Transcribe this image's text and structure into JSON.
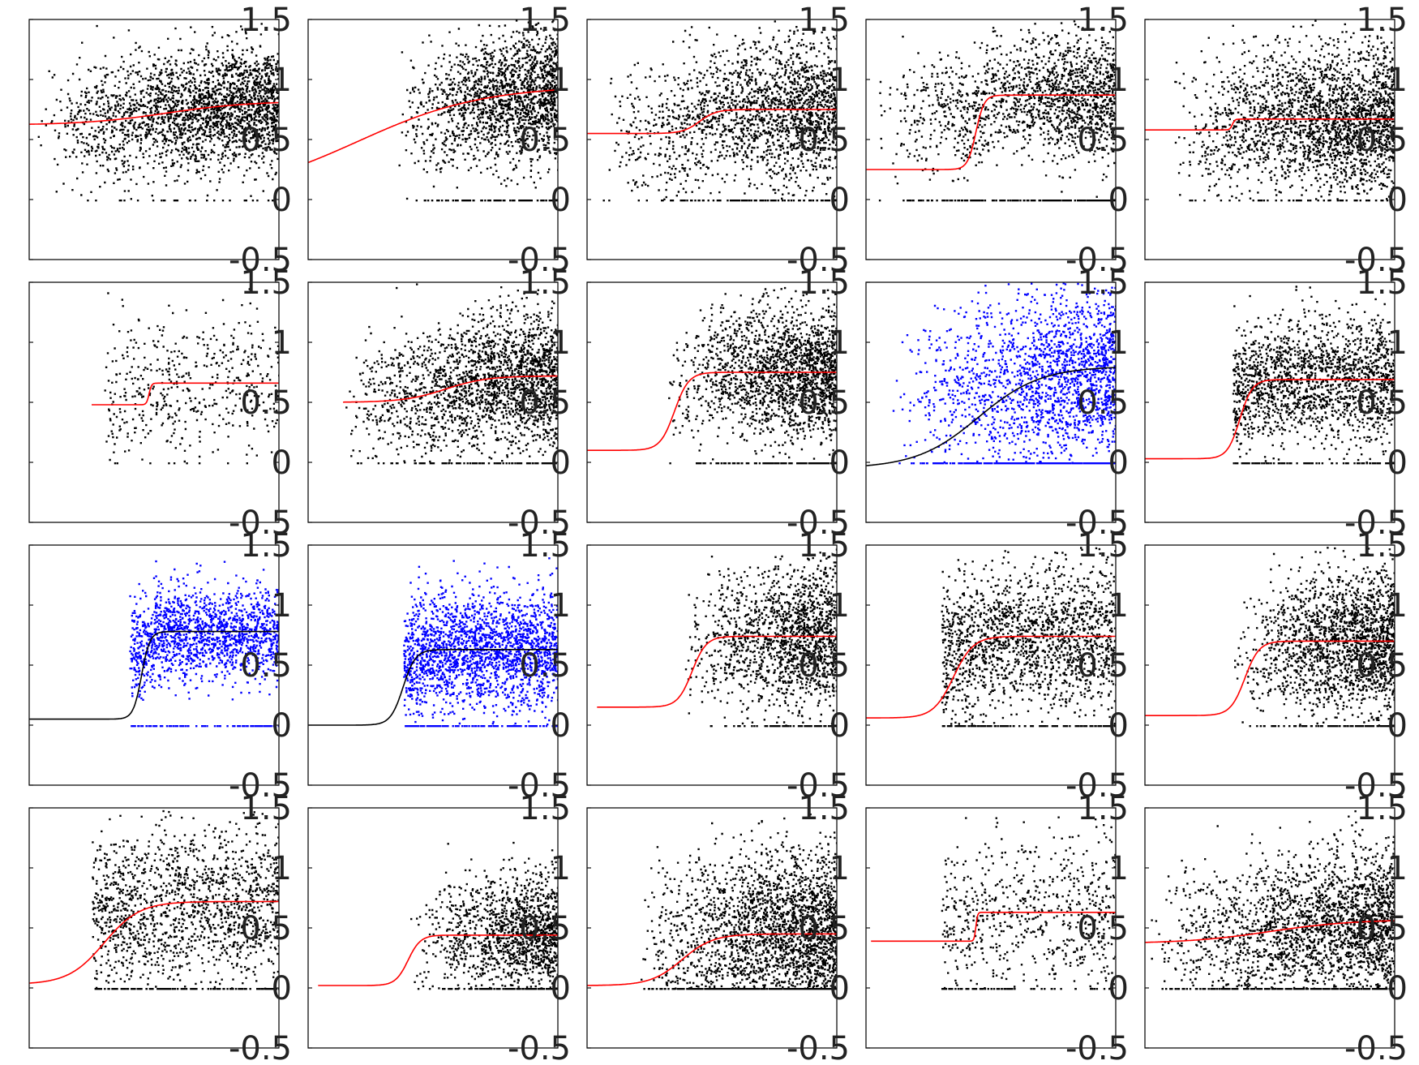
{
  "colors": {
    "points_default": "#000000",
    "points_highlight": "#0000ff",
    "fit_default": "#ff0000",
    "fit_highlight": "#000000",
    "axes": "#111111",
    "tick_text": "#222222"
  },
  "chart_data": {
    "type": "scatter",
    "layout": "grid 4 rows x 5 columns of small scatter panels with fitted sigmoid/step curves",
    "ylim": [
      -0.5,
      1.5
    ],
    "yticks": [
      "-0.5",
      "0",
      "0.5",
      "1",
      "1.5"
    ],
    "xlim": [
      0,
      1
    ],
    "grid": false,
    "legend": "none",
    "panels": [
      {
        "fit": {
          "lo": 0.62,
          "hi": 0.82,
          "mid": 0.55,
          "k": 6
        },
        "cloud": {
          "x0": 0.02,
          "y0": 0.78,
          "sd": 0.25,
          "zero_frac": 0.01,
          "n": 2400,
          "dens": "rising"
        },
        "highlight": false
      },
      {
        "fit": {
          "lo": 0.02,
          "hi": 0.95,
          "mid": 0.2,
          "k": 4
        },
        "cloud": {
          "x0": 0.35,
          "y0": 0.68,
          "sd": 0.28,
          "zero_frac": 0.05,
          "n": 1800,
          "dens": "rising"
        },
        "highlight": false
      },
      {
        "fit": {
          "lo": 0.55,
          "hi": 0.75,
          "mid": 0.45,
          "k": 30
        },
        "cloud": {
          "x0": 0.05,
          "y0": 0.72,
          "sd": 0.3,
          "zero_frac": 0.04,
          "n": 2000,
          "dens": "rising"
        },
        "highlight": false
      },
      {
        "fit": {
          "lo": 0.25,
          "hi": 0.87,
          "mid": 0.44,
          "k": 60
        },
        "cloud": {
          "x0": 0.02,
          "y0": 0.85,
          "sd": 0.25,
          "zero_frac": 0.1,
          "n": 1800,
          "dens": "rising"
        },
        "highlight": false
      },
      {
        "fit": {
          "lo": 0.58,
          "hi": 0.67,
          "mid": 0.35,
          "k": 200
        },
        "cloud": {
          "x0": 0.1,
          "y0": 0.65,
          "sd": 0.3,
          "zero_frac": 0.01,
          "n": 2400,
          "dens": "rising"
        },
        "highlight": false
      },
      {
        "fit": {
          "lo": 0.48,
          "hi": 0.66,
          "mid": 0.48,
          "k": 200,
          "x_start": 0.25
        },
        "cloud": {
          "x0": 0.3,
          "y0": 0.7,
          "sd": 0.3,
          "zero_frac": 0.01,
          "n": 500,
          "dens": "flat"
        },
        "highlight": false
      },
      {
        "fit": {
          "lo": 0.5,
          "hi": 0.72,
          "mid": 0.55,
          "k": 12,
          "x_start": 0.14
        },
        "cloud": {
          "x0": 0.14,
          "y0": 0.65,
          "sd": 0.28,
          "zero_frac": 0.03,
          "n": 2200,
          "dens": "rising"
        },
        "highlight": false
      },
      {
        "fit": {
          "lo": 0.1,
          "hi": 0.75,
          "mid": 0.35,
          "k": 35
        },
        "cloud": {
          "x0": 0.3,
          "y0": 0.8,
          "sd": 0.28,
          "zero_frac": 0.05,
          "n": 2000,
          "dens": "rising"
        },
        "highlight": false
      },
      {
        "fit": {
          "lo": -0.05,
          "hi": 0.8,
          "mid": 0.45,
          "k": 8
        },
        "cloud": {
          "x0": 0.1,
          "y0": 0.7,
          "sd": 0.35,
          "zero_frac": 0.15,
          "n": 2200,
          "dens": "rising"
        },
        "highlight": true
      },
      {
        "fit": {
          "lo": 0.03,
          "hi": 0.69,
          "mid": 0.38,
          "k": 40
        },
        "cloud": {
          "x0": 0.35,
          "y0": 0.72,
          "sd": 0.25,
          "zero_frac": 0.04,
          "n": 1800,
          "dens": "flat"
        },
        "highlight": false
      },
      {
        "fit": {
          "lo": 0.05,
          "hi": 0.78,
          "mid": 0.45,
          "k": 60
        },
        "cloud": {
          "x0": 0.4,
          "y0": 0.75,
          "sd": 0.2,
          "zero_frac": 0.05,
          "n": 1600,
          "dens": "flat"
        },
        "highlight": true
      },
      {
        "fit": {
          "lo": 0.0,
          "hi": 0.63,
          "mid": 0.38,
          "k": 40
        },
        "cloud": {
          "x0": 0.38,
          "y0": 0.65,
          "sd": 0.25,
          "zero_frac": 0.05,
          "n": 2200,
          "dens": "flat"
        },
        "highlight": true
      },
      {
        "fit": {
          "lo": 0.15,
          "hi": 0.74,
          "mid": 0.42,
          "k": 35,
          "x_start": 0.04
        },
        "cloud": {
          "x0": 0.38,
          "y0": 0.75,
          "sd": 0.3,
          "zero_frac": 0.04,
          "n": 1600,
          "dens": "rising"
        },
        "highlight": false
      },
      {
        "fit": {
          "lo": 0.06,
          "hi": 0.74,
          "mid": 0.35,
          "k": 25
        },
        "cloud": {
          "x0": 0.3,
          "y0": 0.75,
          "sd": 0.3,
          "zero_frac": 0.06,
          "n": 1800,
          "dens": "flat"
        },
        "highlight": false
      },
      {
        "fit": {
          "lo": 0.08,
          "hi": 0.7,
          "mid": 0.4,
          "k": 35
        },
        "cloud": {
          "x0": 0.35,
          "y0": 0.7,
          "sd": 0.3,
          "zero_frac": 0.05,
          "n": 2000,
          "dens": "rising"
        },
        "highlight": false
      },
      {
        "fit": {
          "lo": 0.03,
          "hi": 0.72,
          "mid": 0.3,
          "k": 14
        },
        "cloud": {
          "x0": 0.25,
          "y0": 0.75,
          "sd": 0.35,
          "zero_frac": 0.06,
          "n": 1600,
          "dens": "flat"
        },
        "highlight": false
      },
      {
        "fit": {
          "lo": 0.02,
          "hi": 0.44,
          "mid": 0.4,
          "k": 40,
          "x_start": 0.04
        },
        "cloud": {
          "x0": 0.4,
          "y0": 0.5,
          "sd": 0.25,
          "zero_frac": 0.04,
          "n": 1400,
          "dens": "rising"
        },
        "highlight": false
      },
      {
        "fit": {
          "lo": 0.02,
          "hi": 0.45,
          "mid": 0.38,
          "k": 16
        },
        "cloud": {
          "x0": 0.2,
          "y0": 0.5,
          "sd": 0.35,
          "zero_frac": 0.06,
          "n": 2600,
          "dens": "rising"
        },
        "highlight": false
      },
      {
        "fit": {
          "lo": 0.39,
          "hi": 0.63,
          "mid": 0.44,
          "k": 300,
          "x_start": 0.02
        },
        "cloud": {
          "x0": 0.3,
          "y0": 0.6,
          "sd": 0.35,
          "zero_frac": 0.03,
          "n": 700,
          "dens": "flat"
        },
        "highlight": false
      },
      {
        "fit": {
          "lo": 0.37,
          "hi": 0.57,
          "mid": 0.5,
          "k": 6
        },
        "cloud": {
          "x0": 0.0,
          "y0": 0.5,
          "sd": 0.3,
          "zero_frac": 0.05,
          "n": 2400,
          "dens": "rising"
        },
        "highlight": false
      }
    ]
  }
}
